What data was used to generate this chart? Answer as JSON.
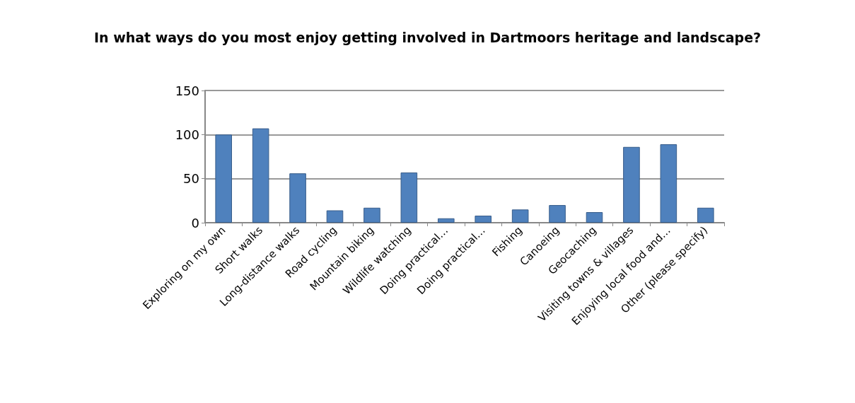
{
  "chart_data": {
    "type": "bar",
    "title": "In what ways do you most enjoy getting involved in Dartmoors heritage and landscape?",
    "categories": [
      "Exploring on my own",
      "Short walks",
      "Long-distance walks",
      "Road cycling",
      "Mountain biking",
      "Wildlife watching",
      "Doing practical…",
      "Doing practical…",
      "Fishing",
      "Canoeing",
      "Geocaching",
      "Visiting towns & villages",
      "Enjoying local food and…",
      "Other (please specify)"
    ],
    "values": [
      100,
      107,
      56,
      14,
      17,
      57,
      5,
      8,
      15,
      20,
      12,
      86,
      89,
      17
    ],
    "color": "#4f81bd",
    "ylim": [
      0,
      150
    ],
    "yticks": [
      0,
      50,
      100,
      150
    ],
    "grid": "y"
  }
}
